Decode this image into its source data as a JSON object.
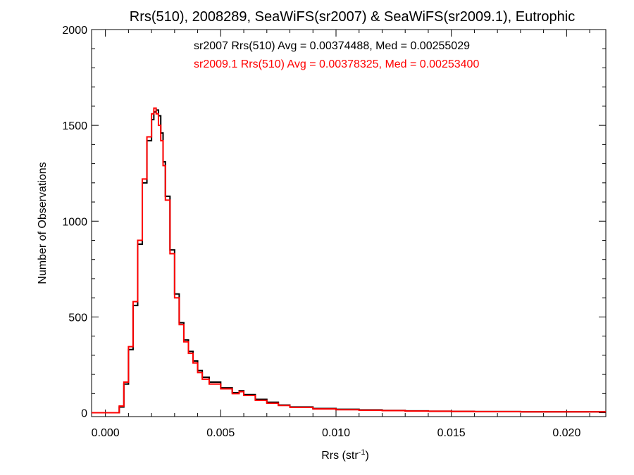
{
  "chart_data": {
    "type": "line",
    "title": "Rrs(510), 2008289, SeaWiFS(sr2007) & SeaWiFS(sr2009.1), Eutrophic",
    "xlabel": "Rrs (str",
    "xlabel_sup": "-1",
    "xlabel_close": ")",
    "ylabel": "Number of Observations",
    "xlim": [
      -0.0006,
      0.0217
    ],
    "ylim": [
      -20,
      2000
    ],
    "xticks": [
      0.0,
      0.005,
      0.01,
      0.015,
      0.02
    ],
    "xtick_labels": [
      "0.000",
      "0.005",
      "0.010",
      "0.015",
      "0.020"
    ],
    "yticks": [
      0,
      500,
      1000,
      1500,
      2000
    ],
    "ytick_labels": [
      "0",
      "500",
      "1000",
      "1500",
      "2000"
    ],
    "grid": false,
    "annotations": [
      {
        "text": "sr2007 Rrs(510) Avg = 0.00374488, Med = 0.00255029",
        "color": "#000000"
      },
      {
        "text": "sr2009.1 Rrs(510) Avg = 0.00378325, Med = 0.00253400",
        "color": "#ff0000"
      }
    ],
    "series": [
      {
        "color": "#000000",
        "x": [
          -0.0006,
          0.0004,
          0.0006,
          0.0008,
          0.001,
          0.0012,
          0.0014,
          0.0016,
          0.0018,
          0.002,
          0.0021,
          0.0022,
          0.0023,
          0.0024,
          0.0025,
          0.0026,
          0.0028,
          0.003,
          0.0032,
          0.0034,
          0.0036,
          0.0038,
          0.004,
          0.0042,
          0.0045,
          0.005,
          0.0055,
          0.0058,
          0.006,
          0.0065,
          0.007,
          0.0075,
          0.008,
          0.009,
          0.01,
          0.011,
          0.012,
          0.013,
          0.014,
          0.015,
          0.016,
          0.017,
          0.018,
          0.019,
          0.02,
          0.021,
          0.0217
        ],
        "y": [
          0,
          0,
          30,
          150,
          330,
          560,
          880,
          1200,
          1420,
          1530,
          1570,
          1580,
          1550,
          1460,
          1310,
          1130,
          850,
          620,
          470,
          380,
          320,
          270,
          220,
          185,
          160,
          130,
          105,
          115,
          95,
          70,
          55,
          40,
          30,
          22,
          18,
          15,
          12,
          10,
          8,
          7,
          6,
          6,
          5,
          5,
          5,
          5,
          5
        ]
      },
      {
        "color": "#ff0000",
        "x": [
          -0.0006,
          0.0004,
          0.0006,
          0.0008,
          0.001,
          0.0012,
          0.0014,
          0.0016,
          0.0018,
          0.002,
          0.0021,
          0.0022,
          0.0023,
          0.0024,
          0.0025,
          0.0026,
          0.0028,
          0.003,
          0.0032,
          0.0034,
          0.0036,
          0.0038,
          0.004,
          0.0042,
          0.0045,
          0.005,
          0.0055,
          0.0058,
          0.006,
          0.0065,
          0.007,
          0.0075,
          0.008,
          0.009,
          0.01,
          0.011,
          0.012,
          0.013,
          0.014,
          0.015,
          0.016,
          0.017,
          0.018,
          0.019,
          0.02,
          0.021,
          0.0217
        ],
        "y": [
          0,
          0,
          35,
          160,
          345,
          580,
          900,
          1220,
          1440,
          1560,
          1590,
          1560,
          1500,
          1420,
          1290,
          1110,
          830,
          600,
          460,
          370,
          310,
          260,
          210,
          175,
          150,
          125,
          100,
          110,
          90,
          65,
          50,
          38,
          28,
          20,
          16,
          13,
          11,
          9,
          8,
          7,
          6,
          6,
          5,
          5,
          5,
          5,
          5
        ]
      }
    ]
  }
}
